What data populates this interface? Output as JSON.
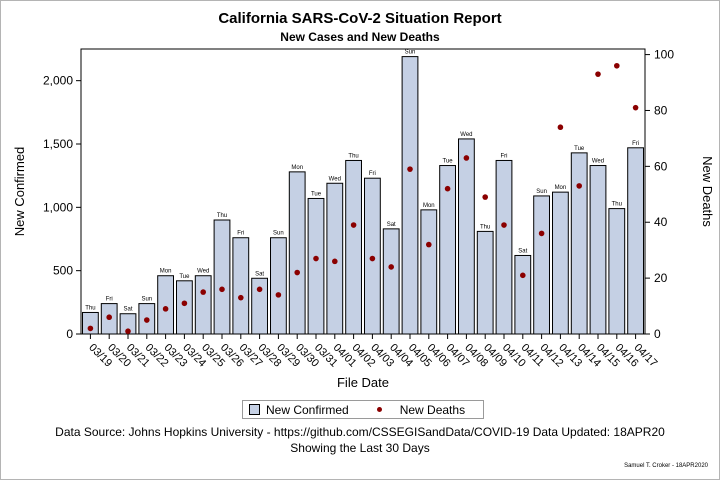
{
  "title": "California SARS-CoV-2 Situation Report",
  "subtitle": "New Cases and New Deaths",
  "colors": {
    "bar_fill": "#c5d0e4",
    "bar_stroke": "#000000",
    "deaths_marker": "#8b0000"
  },
  "footer": {
    "line1": "Data Source: Johns Hopkins University - https://github.com/CSSEGISandData/COVID-19 Data Updated: 18APR20",
    "line2": "Showing the Last 30 Days",
    "credit": "Samuel T. Croker - 18APR2020"
  },
  "chart_data": {
    "type": "bar",
    "title": "California SARS-CoV-2 Situation Report",
    "subtitle": "New Cases and New Deaths",
    "xlabel": "File Date",
    "ylabel": "New Confirmed",
    "y2label": "New Deaths",
    "ylim": [
      0,
      2250
    ],
    "y2lim": [
      0,
      102
    ],
    "yticks": [
      0,
      500,
      1000,
      1500,
      2000
    ],
    "ytick_labels": [
      "0",
      "500",
      "1,000",
      "1,500",
      "2,000"
    ],
    "y2ticks": [
      0,
      20,
      40,
      60,
      80,
      100
    ],
    "legend_position": "bottom",
    "grid": false,
    "categories": [
      "03/19",
      "03/20",
      "03/21",
      "03/22",
      "03/23",
      "03/24",
      "03/25",
      "03/26",
      "03/27",
      "03/28",
      "03/29",
      "03/30",
      "03/31",
      "04/01",
      "04/02",
      "04/03",
      "04/04",
      "04/05",
      "04/06",
      "04/07",
      "04/08",
      "04/09",
      "04/10",
      "04/11",
      "04/12",
      "04/13",
      "04/14",
      "04/15",
      "04/16",
      "04/17"
    ],
    "day_labels": [
      "Thu",
      "Fri",
      "Sat",
      "Sun",
      "Mon",
      "Tue",
      "Wed",
      "Thu",
      "Fri",
      "Sat",
      "Sun",
      "Mon",
      "Tue",
      "Wed",
      "Thu",
      "Fri",
      "Sat",
      "Sun",
      "Mon",
      "Tue",
      "Wed",
      "Thu",
      "Fri",
      "Sat",
      "Sun",
      "Mon",
      "Tue",
      "Wed",
      "Thu",
      "Fri"
    ],
    "series": [
      {
        "name": "New Confirmed",
        "type": "bar",
        "axis": "left",
        "values": [
          170,
          240,
          160,
          240,
          460,
          420,
          460,
          900,
          760,
          440,
          760,
          1280,
          1070,
          1190,
          1370,
          1230,
          830,
          2190,
          980,
          1330,
          1540,
          810,
          1370,
          620,
          1090,
          1120,
          1430,
          1330,
          990,
          1470
        ]
      },
      {
        "name": "New Deaths",
        "type": "scatter",
        "axis": "right",
        "values": [
          2,
          6,
          1,
          5,
          9,
          11,
          15,
          16,
          13,
          16,
          14,
          22,
          27,
          26,
          39,
          27,
          24,
          59,
          32,
          52,
          63,
          49,
          39,
          21,
          36,
          74,
          53,
          93,
          96,
          81
        ]
      }
    ]
  }
}
